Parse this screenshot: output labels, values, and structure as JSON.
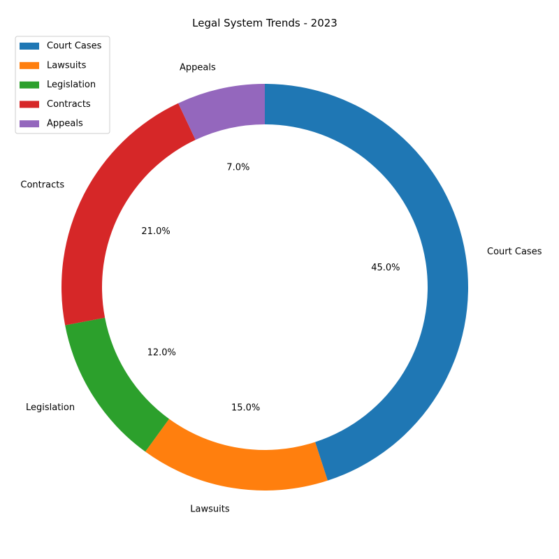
{
  "chart_data": {
    "type": "pie",
    "variant": "donut",
    "title": "Legal System Trends - 2023",
    "categories": [
      "Court Cases",
      "Lawsuits",
      "Legislation",
      "Contracts",
      "Appeals"
    ],
    "values": [
      45.0,
      15.0,
      12.0,
      21.0,
      7.0
    ],
    "percent_labels": [
      "45.0%",
      "15.0%",
      "12.0%",
      "21.0%",
      "7.0%"
    ],
    "colors": [
      "#1f77b4",
      "#ff7f0e",
      "#2ca02c",
      "#d62728",
      "#9467bd"
    ],
    "start_angle_deg": 90,
    "direction": "clockwise",
    "legend": {
      "placement": "top-left",
      "entries": [
        "Court Cases",
        "Lawsuits",
        "Legislation",
        "Contracts",
        "Appeals"
      ]
    }
  }
}
